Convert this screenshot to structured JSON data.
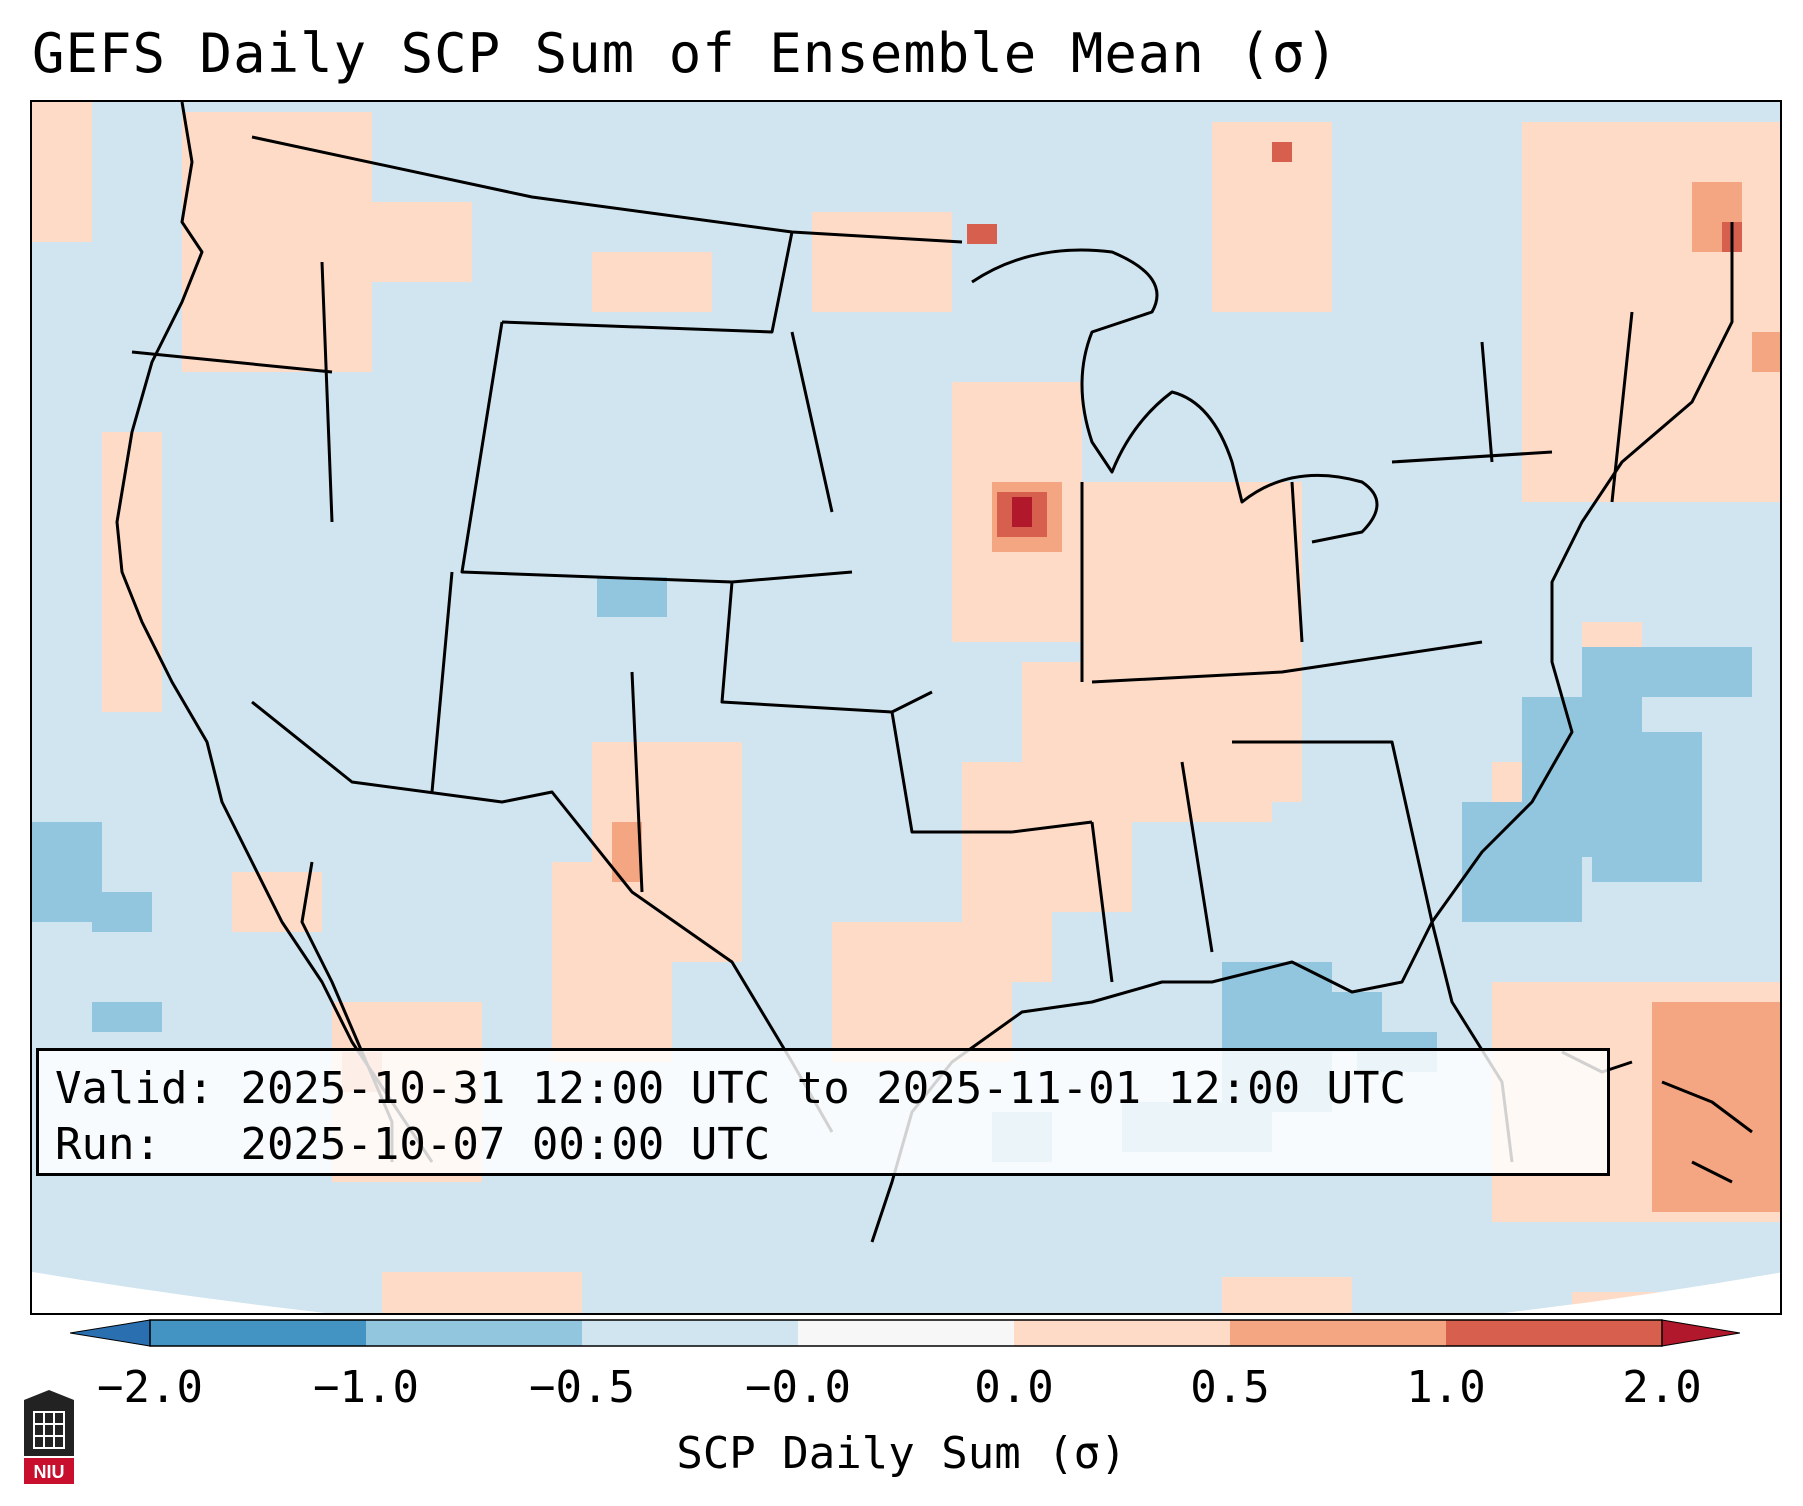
{
  "title": "GEFS Daily SCP Sum of Ensemble Mean (σ)",
  "info": {
    "valid_label": "Valid:",
    "valid_value": "2025-10-31 12:00 UTC to 2025-11-01 12:00 UTC",
    "run_label": "Run:",
    "run_value": "2025-10-07 00:00 UTC"
  },
  "colorbar": {
    "label": "SCP Daily Sum (σ)",
    "ticks": [
      "−2.0",
      "−1.0",
      "−0.5",
      "−0.0",
      "0.0",
      "0.5",
      "1.0",
      "2.0"
    ],
    "colors": {
      "under": "#2a6fb0",
      "bin_neg2_neg1": "#4393c3",
      "bin_neg1_neg05": "#92c5de",
      "bin_neg05_0": "#d1e5f0",
      "bin_zero": "#f7f7f7",
      "bin_0_05": "#fddbc7",
      "bin_05_1": "#f4a582",
      "bin_1_2": "#d6604d",
      "over": "#b2182b"
    }
  },
  "logo": {
    "text": "NIU",
    "color": "#c8102e"
  },
  "colors": {
    "background_field": "#d1e5f0",
    "ocean_outer": "#ffffff",
    "boundary": "#000000"
  }
}
